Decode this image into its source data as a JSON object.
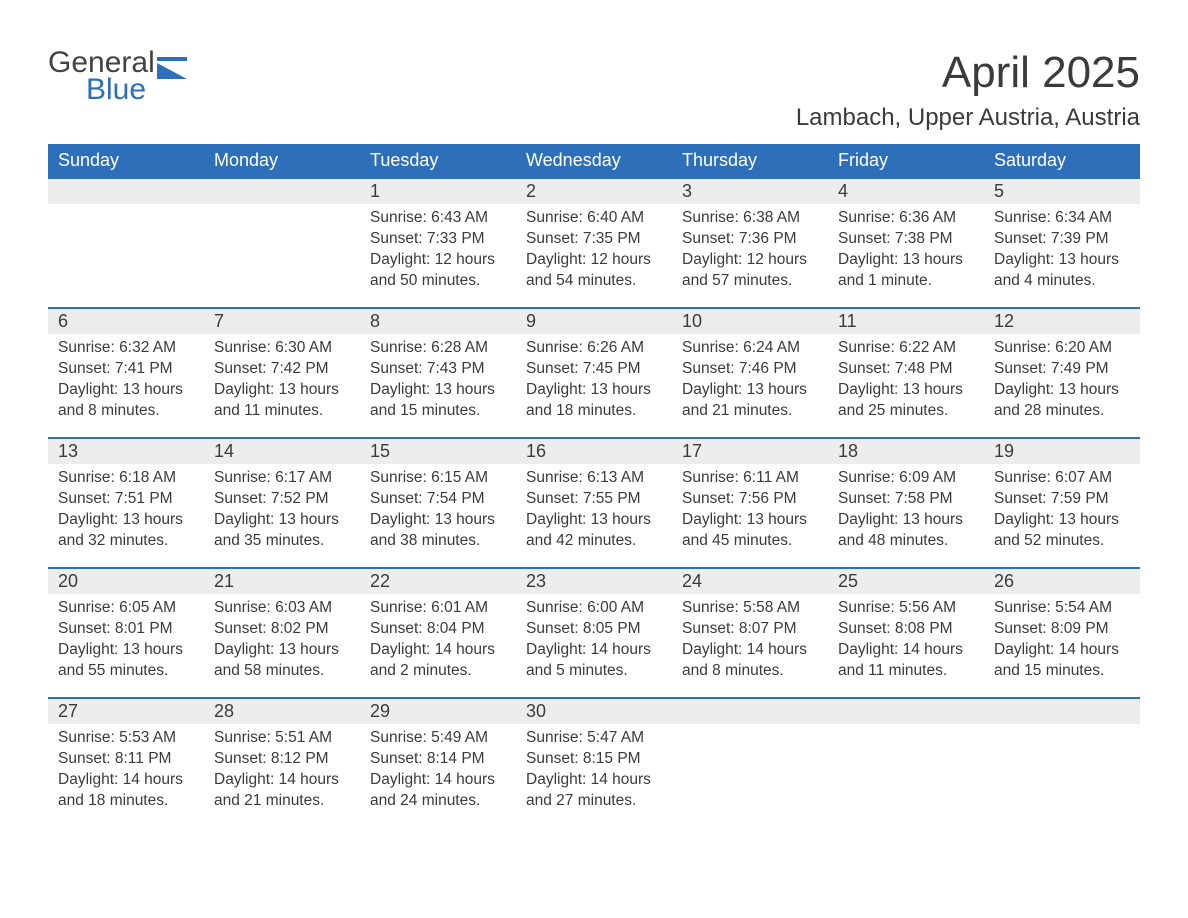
{
  "brand": {
    "general": "General",
    "blue": "Blue",
    "logo_color": "#2d6fb8",
    "text_color": "#424242"
  },
  "title": "April 2025",
  "location": "Lambach, Upper Austria, Austria",
  "header_bg": "#2d6fb8",
  "header_fg": "#ffffff",
  "daynum_bg": "#ededed",
  "border_color": "#2d6fb8",
  "text_color": "#3b3b3b",
  "days_of_week": [
    "Sunday",
    "Monday",
    "Tuesday",
    "Wednesday",
    "Thursday",
    "Friday",
    "Saturday"
  ],
  "weeks": [
    [
      {
        "num": "",
        "sunrise": "",
        "sunset": "",
        "daylight": ""
      },
      {
        "num": "",
        "sunrise": "",
        "sunset": "",
        "daylight": ""
      },
      {
        "num": "1",
        "sunrise": "Sunrise: 6:43 AM",
        "sunset": "Sunset: 7:33 PM",
        "daylight": "Daylight: 12 hours and 50 minutes."
      },
      {
        "num": "2",
        "sunrise": "Sunrise: 6:40 AM",
        "sunset": "Sunset: 7:35 PM",
        "daylight": "Daylight: 12 hours and 54 minutes."
      },
      {
        "num": "3",
        "sunrise": "Sunrise: 6:38 AM",
        "sunset": "Sunset: 7:36 PM",
        "daylight": "Daylight: 12 hours and 57 minutes."
      },
      {
        "num": "4",
        "sunrise": "Sunrise: 6:36 AM",
        "sunset": "Sunset: 7:38 PM",
        "daylight": "Daylight: 13 hours and 1 minute."
      },
      {
        "num": "5",
        "sunrise": "Sunrise: 6:34 AM",
        "sunset": "Sunset: 7:39 PM",
        "daylight": "Daylight: 13 hours and 4 minutes."
      }
    ],
    [
      {
        "num": "6",
        "sunrise": "Sunrise: 6:32 AM",
        "sunset": "Sunset: 7:41 PM",
        "daylight": "Daylight: 13 hours and 8 minutes."
      },
      {
        "num": "7",
        "sunrise": "Sunrise: 6:30 AM",
        "sunset": "Sunset: 7:42 PM",
        "daylight": "Daylight: 13 hours and 11 minutes."
      },
      {
        "num": "8",
        "sunrise": "Sunrise: 6:28 AM",
        "sunset": "Sunset: 7:43 PM",
        "daylight": "Daylight: 13 hours and 15 minutes."
      },
      {
        "num": "9",
        "sunrise": "Sunrise: 6:26 AM",
        "sunset": "Sunset: 7:45 PM",
        "daylight": "Daylight: 13 hours and 18 minutes."
      },
      {
        "num": "10",
        "sunrise": "Sunrise: 6:24 AM",
        "sunset": "Sunset: 7:46 PM",
        "daylight": "Daylight: 13 hours and 21 minutes."
      },
      {
        "num": "11",
        "sunrise": "Sunrise: 6:22 AM",
        "sunset": "Sunset: 7:48 PM",
        "daylight": "Daylight: 13 hours and 25 minutes."
      },
      {
        "num": "12",
        "sunrise": "Sunrise: 6:20 AM",
        "sunset": "Sunset: 7:49 PM",
        "daylight": "Daylight: 13 hours and 28 minutes."
      }
    ],
    [
      {
        "num": "13",
        "sunrise": "Sunrise: 6:18 AM",
        "sunset": "Sunset: 7:51 PM",
        "daylight": "Daylight: 13 hours and 32 minutes."
      },
      {
        "num": "14",
        "sunrise": "Sunrise: 6:17 AM",
        "sunset": "Sunset: 7:52 PM",
        "daylight": "Daylight: 13 hours and 35 minutes."
      },
      {
        "num": "15",
        "sunrise": "Sunrise: 6:15 AM",
        "sunset": "Sunset: 7:54 PM",
        "daylight": "Daylight: 13 hours and 38 minutes."
      },
      {
        "num": "16",
        "sunrise": "Sunrise: 6:13 AM",
        "sunset": "Sunset: 7:55 PM",
        "daylight": "Daylight: 13 hours and 42 minutes."
      },
      {
        "num": "17",
        "sunrise": "Sunrise: 6:11 AM",
        "sunset": "Sunset: 7:56 PM",
        "daylight": "Daylight: 13 hours and 45 minutes."
      },
      {
        "num": "18",
        "sunrise": "Sunrise: 6:09 AM",
        "sunset": "Sunset: 7:58 PM",
        "daylight": "Daylight: 13 hours and 48 minutes."
      },
      {
        "num": "19",
        "sunrise": "Sunrise: 6:07 AM",
        "sunset": "Sunset: 7:59 PM",
        "daylight": "Daylight: 13 hours and 52 minutes."
      }
    ],
    [
      {
        "num": "20",
        "sunrise": "Sunrise: 6:05 AM",
        "sunset": "Sunset: 8:01 PM",
        "daylight": "Daylight: 13 hours and 55 minutes."
      },
      {
        "num": "21",
        "sunrise": "Sunrise: 6:03 AM",
        "sunset": "Sunset: 8:02 PM",
        "daylight": "Daylight: 13 hours and 58 minutes."
      },
      {
        "num": "22",
        "sunrise": "Sunrise: 6:01 AM",
        "sunset": "Sunset: 8:04 PM",
        "daylight": "Daylight: 14 hours and 2 minutes."
      },
      {
        "num": "23",
        "sunrise": "Sunrise: 6:00 AM",
        "sunset": "Sunset: 8:05 PM",
        "daylight": "Daylight: 14 hours and 5 minutes."
      },
      {
        "num": "24",
        "sunrise": "Sunrise: 5:58 AM",
        "sunset": "Sunset: 8:07 PM",
        "daylight": "Daylight: 14 hours and 8 minutes."
      },
      {
        "num": "25",
        "sunrise": "Sunrise: 5:56 AM",
        "sunset": "Sunset: 8:08 PM",
        "daylight": "Daylight: 14 hours and 11 minutes."
      },
      {
        "num": "26",
        "sunrise": "Sunrise: 5:54 AM",
        "sunset": "Sunset: 8:09 PM",
        "daylight": "Daylight: 14 hours and 15 minutes."
      }
    ],
    [
      {
        "num": "27",
        "sunrise": "Sunrise: 5:53 AM",
        "sunset": "Sunset: 8:11 PM",
        "daylight": "Daylight: 14 hours and 18 minutes."
      },
      {
        "num": "28",
        "sunrise": "Sunrise: 5:51 AM",
        "sunset": "Sunset: 8:12 PM",
        "daylight": "Daylight: 14 hours and 21 minutes."
      },
      {
        "num": "29",
        "sunrise": "Sunrise: 5:49 AM",
        "sunset": "Sunset: 8:14 PM",
        "daylight": "Daylight: 14 hours and 24 minutes."
      },
      {
        "num": "30",
        "sunrise": "Sunrise: 5:47 AM",
        "sunset": "Sunset: 8:15 PM",
        "daylight": "Daylight: 14 hours and 27 minutes."
      },
      {
        "num": "",
        "sunrise": "",
        "sunset": "",
        "daylight": ""
      },
      {
        "num": "",
        "sunrise": "",
        "sunset": "",
        "daylight": ""
      },
      {
        "num": "",
        "sunrise": "",
        "sunset": "",
        "daylight": ""
      }
    ]
  ]
}
